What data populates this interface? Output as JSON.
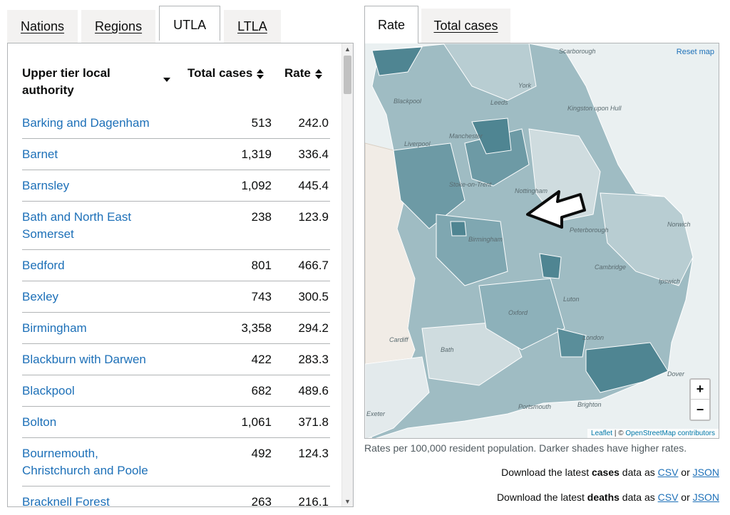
{
  "left_tabs": [
    "Nations",
    "Regions",
    "UTLA",
    "LTLA"
  ],
  "table": {
    "headers": {
      "name": "Upper tier local authority",
      "cases": "Total cases",
      "rate": "Rate"
    },
    "rows": [
      {
        "name": "Barking and Dagenham",
        "cases": "513",
        "rate": "242.0"
      },
      {
        "name": "Barnet",
        "cases": "1,319",
        "rate": "336.4"
      },
      {
        "name": "Barnsley",
        "cases": "1,092",
        "rate": "445.4"
      },
      {
        "name": "Bath and North East Somerset",
        "cases": "238",
        "rate": "123.9"
      },
      {
        "name": "Bedford",
        "cases": "801",
        "rate": "466.7"
      },
      {
        "name": "Bexley",
        "cases": "743",
        "rate": "300.5"
      },
      {
        "name": "Birmingham",
        "cases": "3,358",
        "rate": "294.2"
      },
      {
        "name": "Blackburn with Darwen",
        "cases": "422",
        "rate": "283.3"
      },
      {
        "name": "Blackpool",
        "cases": "682",
        "rate": "489.6"
      },
      {
        "name": "Bolton",
        "cases": "1,061",
        "rate": "371.8"
      },
      {
        "name": "Bournemouth, Christchurch and Poole",
        "cases": "492",
        "rate": "124.3"
      },
      {
        "name": "Bracknell Forest",
        "cases": "263",
        "rate": "216.1"
      }
    ]
  },
  "map_tabs": [
    "Rate",
    "Total cases"
  ],
  "map": {
    "reset": "Reset map",
    "zoom_in": "+",
    "zoom_out": "−",
    "attribution_leaflet": "Leaflet",
    "attribution_sep": " | © ",
    "attribution_osm": "OpenStreetMap contributors",
    "places": [
      "Scarborough",
      "York",
      "Blackpool",
      "Leeds",
      "Kingston upon Hull",
      "Manchester",
      "Liverpool",
      "Stoke-on-Trent",
      "Nottingham",
      "Norwich",
      "Peterborough",
      "Birmingham",
      "Cambridge",
      "Ipswich",
      "Luton",
      "Oxford",
      "Cardiff",
      "Bath",
      "London",
      "Dover",
      "Portsmouth",
      "Brighton",
      "Exeter"
    ],
    "colors": {
      "light": "#cfdcdf",
      "mid": "#9fbcc3",
      "dark": "#6d9aa5",
      "darker": "#4f8592"
    }
  },
  "caption": "Rates per 100,000 resident population. Darker shades have higher rates.",
  "downloads": {
    "cases": {
      "prefix": "Download the latest ",
      "bold": "cases",
      "suffix": " data as ",
      "csv": "CSV",
      "or": " or ",
      "json": "JSON"
    },
    "deaths": {
      "prefix": "Download the latest ",
      "bold": "deaths",
      "suffix": " data as ",
      "csv": "CSV",
      "or": " or ",
      "json": "JSON"
    }
  }
}
